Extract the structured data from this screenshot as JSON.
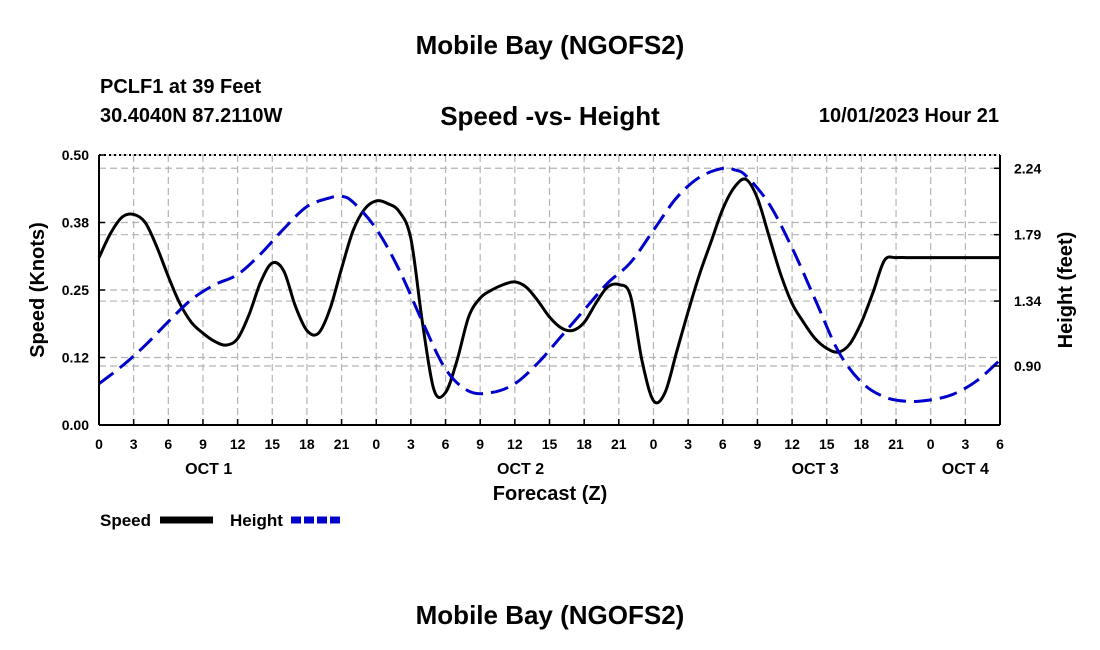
{
  "header": {
    "title": "Mobile Bay (NGOFS2)",
    "station": "PCLF1 at 39 Feet",
    "coords": "30.4040N  87.2110W",
    "subtitle": "Speed -vs- Height",
    "datetime": "10/01/2023 Hour 21"
  },
  "footer": {
    "title": "Mobile Bay (NGOFS2)"
  },
  "colors": {
    "speed": "#000000",
    "height": "#0000cc",
    "grid": "#b4b4b4"
  },
  "chart_data": {
    "type": "line",
    "title": "Speed -vs- Height",
    "xlabel": "Forecast (Z)",
    "ylabel": "Speed (Knots)",
    "y2label": "Height (feet)",
    "grid": true,
    "xlim": [
      0,
      78
    ],
    "ylim": [
      0,
      0.5
    ],
    "y2lim": [
      0.5,
      2.33
    ],
    "x_tick_values": [
      0,
      3,
      6,
      9,
      12,
      15,
      18,
      21,
      24,
      27,
      30,
      33,
      36,
      39,
      42,
      45,
      48,
      51,
      54,
      57,
      60,
      63,
      66,
      69,
      72,
      75,
      78
    ],
    "x_tick_labels": [
      "0",
      "3",
      "6",
      "9",
      "12",
      "15",
      "18",
      "21",
      "0",
      "3",
      "6",
      "9",
      "12",
      "15",
      "18",
      "21",
      "0",
      "3",
      "6",
      "9",
      "12",
      "15",
      "18",
      "21",
      "0",
      "3",
      "6"
    ],
    "date_labels": [
      {
        "label": "OCT 1",
        "x": 9.5
      },
      {
        "label": "OCT 2",
        "x": 36.5
      },
      {
        "label": "OCT 3",
        "x": 62
      },
      {
        "label": "OCT 4",
        "x": 75
      }
    ],
    "y_ticks": [
      "0.00",
      "0.12",
      "0.25",
      "0.38",
      "0.50"
    ],
    "y_tick_values": [
      0,
      0.125,
      0.25,
      0.375,
      0.5
    ],
    "y2_ticks": [
      "0.90",
      "1.34",
      "1.79",
      "2.24"
    ],
    "y2_tick_values": [
      0.9,
      1.34,
      1.79,
      2.24
    ],
    "legend": [
      {
        "name": "Speed",
        "style": "solid"
      },
      {
        "name": "Height",
        "style": "dashed"
      }
    ],
    "series": [
      {
        "name": "Speed",
        "axis": "left",
        "style": "solid",
        "x": [
          0,
          1,
          2,
          3,
          4,
          5,
          6,
          7,
          8,
          9,
          10,
          11,
          12,
          13,
          14,
          15,
          16,
          17,
          18,
          19,
          20,
          21,
          22,
          23,
          24,
          25,
          26,
          27,
          28,
          29,
          30,
          31,
          32,
          33,
          34,
          35,
          36,
          37,
          38,
          39,
          40,
          41,
          42,
          43,
          44,
          45,
          46,
          47,
          48,
          49,
          50,
          51,
          52,
          53,
          54,
          55,
          56,
          57,
          58,
          59,
          60,
          61,
          62,
          63,
          64,
          65,
          66,
          67,
          68,
          69,
          70,
          71,
          72,
          73,
          74,
          75,
          76,
          77,
          78
        ],
        "values": [
          0.31,
          0.355,
          0.385,
          0.39,
          0.375,
          0.33,
          0.275,
          0.225,
          0.19,
          0.17,
          0.155,
          0.148,
          0.16,
          0.205,
          0.265,
          0.3,
          0.285,
          0.22,
          0.175,
          0.17,
          0.215,
          0.29,
          0.36,
          0.4,
          0.415,
          0.41,
          0.395,
          0.345,
          0.19,
          0.065,
          0.06,
          0.12,
          0.2,
          0.235,
          0.25,
          0.26,
          0.265,
          0.255,
          0.23,
          0.2,
          0.18,
          0.175,
          0.19,
          0.225,
          0.255,
          0.26,
          0.24,
          0.12,
          0.045,
          0.06,
          0.135,
          0.21,
          0.28,
          0.34,
          0.4,
          0.44,
          0.455,
          0.42,
          0.35,
          0.28,
          0.225,
          0.19,
          0.16,
          0.142,
          0.135,
          0.15,
          0.19,
          0.245,
          0.305,
          0.31,
          0.31,
          0.31,
          0.31,
          0.31,
          0.31,
          0.31,
          0.31,
          0.31,
          0.31
        ]
      },
      {
        "name": "Height",
        "axis": "right",
        "style": "dashed",
        "x": [
          0,
          2,
          4,
          6,
          8,
          10,
          12,
          14,
          16,
          18,
          20,
          21,
          22,
          24,
          26,
          28,
          30,
          32,
          34,
          36,
          38,
          40,
          42,
          44,
          46,
          48,
          50,
          52,
          54,
          55,
          56,
          58,
          60,
          62,
          64,
          66,
          68,
          70,
          72,
          74,
          76,
          78
        ],
        "values": [
          0.78,
          0.9,
          1.04,
          1.2,
          1.35,
          1.45,
          1.52,
          1.66,
          1.83,
          1.98,
          2.04,
          2.05,
          2.01,
          1.83,
          1.55,
          1.2,
          0.88,
          0.73,
          0.72,
          0.78,
          0.92,
          1.1,
          1.28,
          1.46,
          1.6,
          1.82,
          2.04,
          2.18,
          2.24,
          2.23,
          2.19,
          2.0,
          1.7,
          1.35,
          1.0,
          0.79,
          0.69,
          0.66,
          0.67,
          0.71,
          0.8,
          0.94
        ]
      }
    ]
  }
}
